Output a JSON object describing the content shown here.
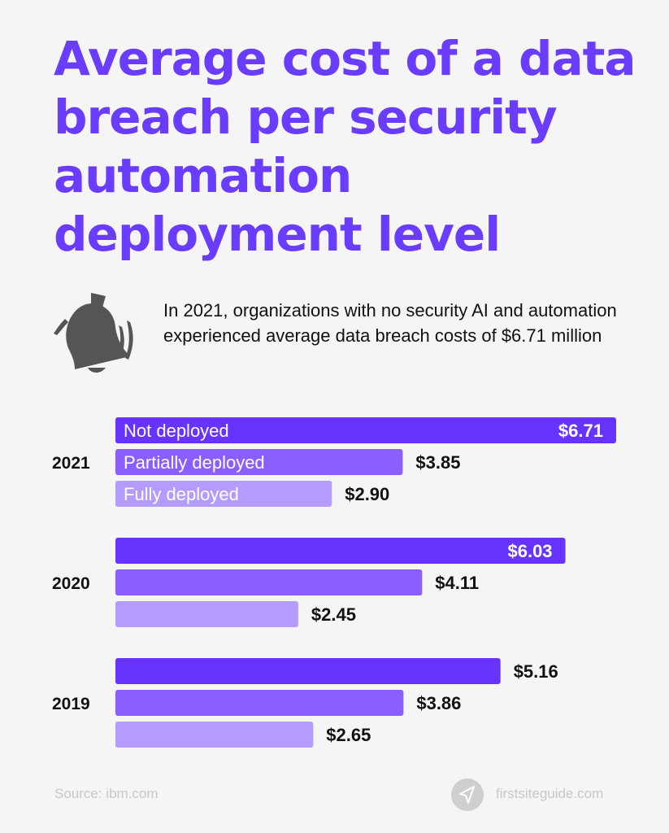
{
  "title": "Average cost of a data breach per security automation deployment level",
  "subtitle": "In 2021, organizations with no security AI and automation experienced average data breach costs of $6.71 million",
  "icon": "bell-icon",
  "footer": {
    "source": "Source: ibm.com",
    "brand": "firstsiteguide.com",
    "brand_icon": "paper-plane-icon"
  },
  "chart_data": {
    "type": "bar",
    "orientation": "horizontal",
    "categories": [
      "2021",
      "2020",
      "2019"
    ],
    "series": [
      {
        "name": "Not deployed",
        "color": "#6633ff",
        "values": [
          6.71,
          6.03,
          5.16
        ],
        "labels": [
          "$6.71",
          "$6.03",
          "$5.16"
        ]
      },
      {
        "name": "Partially deployed",
        "color": "#8b5eff",
        "values": [
          3.85,
          4.11,
          3.86
        ],
        "labels": [
          "$3.85",
          "$4.11",
          "$3.86"
        ]
      },
      {
        "name": "Fully deployed",
        "color": "#b39bff",
        "values": [
          2.9,
          2.45,
          2.65
        ],
        "labels": [
          "$2.90",
          "$2.45",
          "$2.65"
        ]
      }
    ],
    "unit": "$ million",
    "legend": "inside-first-group-bars",
    "grid": false
  }
}
